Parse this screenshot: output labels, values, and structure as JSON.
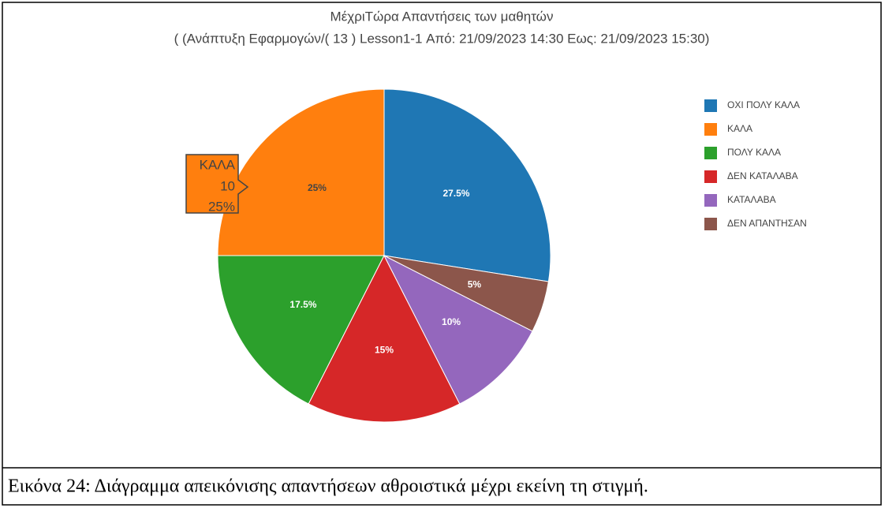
{
  "chart_data": {
    "type": "pie",
    "title": "ΜέχριΤώρα Απαντήσεις των μαθητών",
    "subtitle": "( (Ανάπτυξη Εφαρμογών/( 13 ) Lesson1-1 Από: 21/09/2023 14:30 Εως: 21/09/2023 15:30)",
    "categories": [
      "ΟΧΙ ΠΟΛΥ ΚΑΛΑ",
      "ΚΑΛΑ",
      "ΠΟΛΥ ΚΑΛΑ",
      "ΔΕΝ ΚΑΤΑΛΑΒΑ",
      "ΚΑΤΑΛΑΒΑ",
      "ΔΕΝ ΑΠΑΝΤΗΣΑΝ"
    ],
    "values": [
      27.5,
      25,
      17.5,
      15,
      10,
      5
    ],
    "value_labels": [
      "27.5%",
      "25%",
      "17.5%",
      "15%",
      "10%",
      "5%"
    ],
    "colors": [
      "#1f77b4",
      "#ff7f0e",
      "#2ca02c",
      "#d62728",
      "#9467bd",
      "#8c564b"
    ],
    "hover_count": 10,
    "legend": "right"
  },
  "caption": "Εικόνα 24: Διάγραμμα απεικόνισης απαντήσεων αθροιστικά μέχρι εκείνη τη στιγμή."
}
